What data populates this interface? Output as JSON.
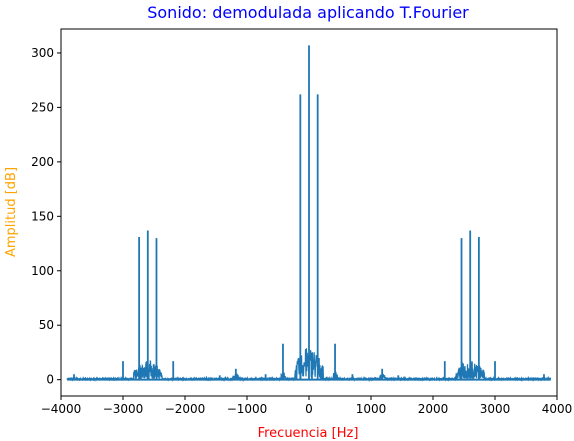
{
  "chart_data": {
    "type": "line",
    "title": "Sonido: demodulada aplicando T.Fourier",
    "xlabel": "Frecuencia [Hz]",
    "ylabel": "Amplitud [dB]",
    "xlim": [
      -4000,
      4000
    ],
    "ylim": [
      -15,
      322
    ],
    "xticks": [
      -4000,
      -3000,
      -2000,
      -1000,
      0,
      1000,
      2000,
      3000,
      4000
    ],
    "yticks": [
      0,
      50,
      100,
      150,
      200,
      250,
      300
    ],
    "grid": false,
    "colors": {
      "title": "#0000ff",
      "xlabel": "#ff0000",
      "ylabel": "#ffa500",
      "line": "#1f77b4"
    },
    "series": [
      {
        "peaks": [
          {
            "x": 0,
            "y": 307
          },
          {
            "x": -140,
            "y": 262
          },
          {
            "x": 140,
            "y": 262
          },
          {
            "x": -2600,
            "y": 137
          },
          {
            "x": 2600,
            "y": 137
          },
          {
            "x": -2740,
            "y": 131
          },
          {
            "x": 2740,
            "y": 131
          },
          {
            "x": -2460,
            "y": 130
          },
          {
            "x": 2460,
            "y": 130
          },
          {
            "x": -420,
            "y": 33
          },
          {
            "x": 420,
            "y": 33
          },
          {
            "x": -3000,
            "y": 17
          },
          {
            "x": 3000,
            "y": 17
          },
          {
            "x": -2190,
            "y": 17
          },
          {
            "x": 2190,
            "y": 17
          },
          {
            "x": -1180,
            "y": 10
          },
          {
            "x": 1180,
            "y": 10
          },
          {
            "x": -3790,
            "y": 5
          },
          {
            "x": 3790,
            "y": 5
          },
          {
            "x": -1440,
            "y": 4
          },
          {
            "x": 1440,
            "y": 4
          },
          {
            "x": -700,
            "y": 5
          },
          {
            "x": 700,
            "y": 5
          }
        ],
        "clusters": [
          {
            "center": 0,
            "halfwidth": 230,
            "height": 30
          },
          {
            "center": -2600,
            "halfwidth": 230,
            "height": 18
          },
          {
            "center": 2600,
            "halfwidth": 230,
            "height": 18
          },
          {
            "center": -1180,
            "halfwidth": 60,
            "height": 6
          },
          {
            "center": 1180,
            "halfwidth": 60,
            "height": 6
          },
          {
            "center": -420,
            "halfwidth": 40,
            "height": 8
          },
          {
            "center": 420,
            "halfwidth": 40,
            "height": 8
          }
        ]
      }
    ]
  }
}
